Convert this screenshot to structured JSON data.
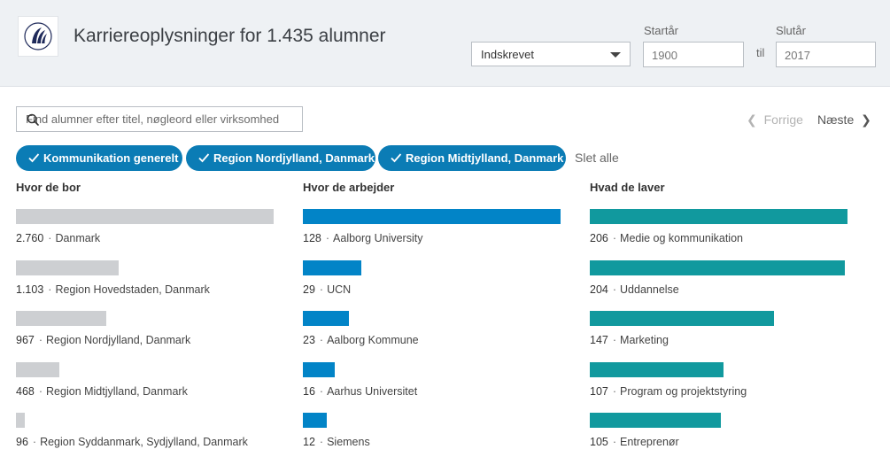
{
  "header": {
    "title": "Karriereoplysninger for 1.435 alumner",
    "select_value": "Indskrevet",
    "start_label": "Startår",
    "end_label": "Slutår",
    "start_value": "1900",
    "end_value": "2017",
    "til": "til"
  },
  "search": {
    "placeholder": "Find alumner efter titel, nøgleord eller virksomhed"
  },
  "pager": {
    "prev": "Forrige",
    "next": "Næste",
    "prev_glyph": "❮",
    "next_glyph": "❯"
  },
  "chips": [
    {
      "label": "Kommunikation generelt"
    },
    {
      "label": "Region Nordjylland, Danmark"
    },
    {
      "label": "Region Midtjylland, Danmark"
    }
  ],
  "clear_all": "Slet alle",
  "colors": {
    "accent": "#0b7cb5",
    "gray_bar": "#cdcfd2",
    "blue_bar": "#0284c7",
    "teal_bar": "#11999e"
  },
  "columns": [
    {
      "title": "Hvor de bor",
      "color": "#cdcfd2",
      "rows": [
        {
          "count": "2.760",
          "label": "Danmark",
          "value": 2760
        },
        {
          "count": "1.103",
          "label": "Region Hovedstaden, Danmark",
          "value": 1103
        },
        {
          "count": "967",
          "label": "Region Nordjylland, Danmark",
          "value": 967
        },
        {
          "count": "468",
          "label": "Region Midtjylland, Danmark",
          "value": 468
        },
        {
          "count": "96",
          "label": "Region Syddanmark, Sydjylland, Danmark",
          "value": 96
        }
      ]
    },
    {
      "title": "Hvor de arbejder",
      "color": "#0284c7",
      "rows": [
        {
          "count": "128",
          "label": "Aalborg University",
          "value": 128
        },
        {
          "count": "29",
          "label": "UCN",
          "value": 29
        },
        {
          "count": "23",
          "label": "Aalborg Kommune",
          "value": 23
        },
        {
          "count": "16",
          "label": "Aarhus Universitet",
          "value": 16
        },
        {
          "count": "12",
          "label": "Siemens",
          "value": 12
        }
      ]
    },
    {
      "title": "Hvad de laver",
      "color": "#11999e",
      "rows": [
        {
          "count": "206",
          "label": "Medie og kommunikation",
          "value": 206
        },
        {
          "count": "204",
          "label": "Uddannelse",
          "value": 204
        },
        {
          "count": "147",
          "label": "Marketing",
          "value": 147
        },
        {
          "count": "107",
          "label": "Program og projektstyring",
          "value": 107
        },
        {
          "count": "105",
          "label": "Entreprenør",
          "value": 105
        }
      ]
    }
  ]
}
